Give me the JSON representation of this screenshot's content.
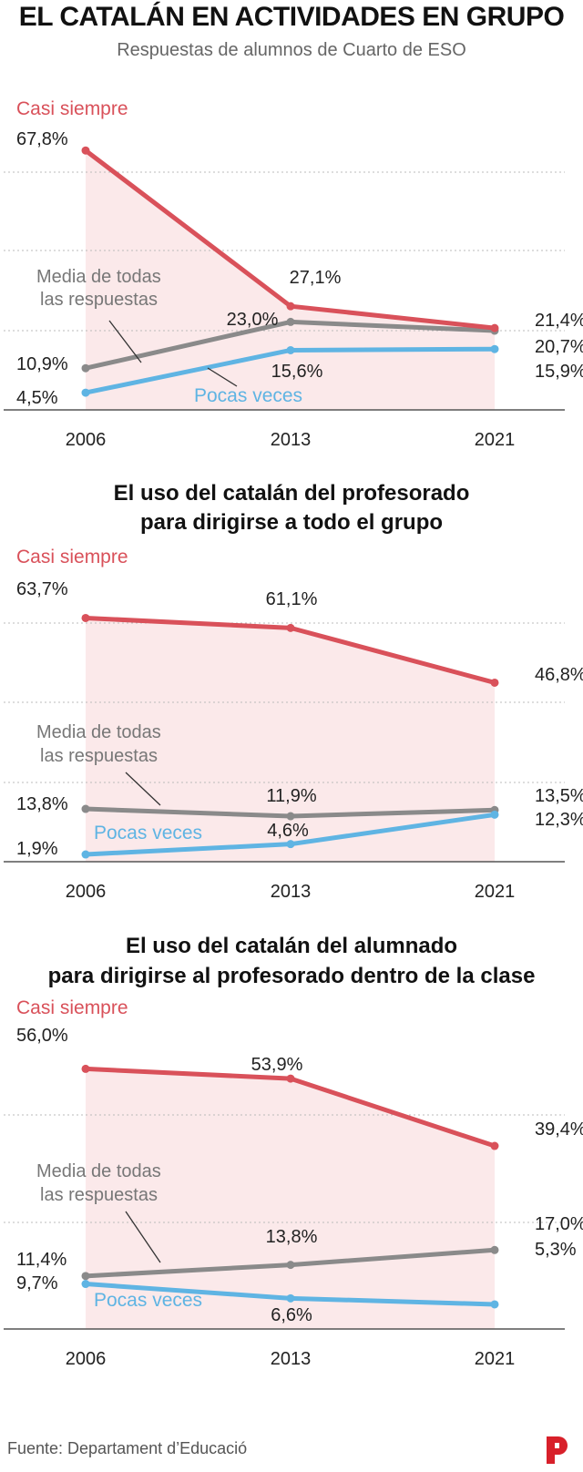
{
  "header": {
    "title": "EL CATALÁN EN ACTIVIDADES EN GRUPO",
    "subtitle": "Respuestas de alumnos de Cuarto de ESO"
  },
  "footer": {
    "source": "Fuente: Departament d’Educació"
  },
  "colors": {
    "casi": "#d9515a",
    "media": "#8a8a8a",
    "pocas": "#5fb4e3",
    "shade": "#fbe9ea"
  },
  "chart_data": [
    {
      "type": "line",
      "title": "",
      "categories": [
        "2006",
        "2013",
        "2021"
      ],
      "series": [
        {
          "name": "Casi siempre",
          "values": [
            67.8,
            27.1,
            21.4
          ],
          "labels": [
            "67,8%",
            "27,1%",
            "21,4%"
          ]
        },
        {
          "name": "Media de todas las respuestas",
          "values": [
            10.9,
            23.0,
            20.7
          ],
          "labels": [
            "10,9%",
            "23,0%",
            "20,7%"
          ]
        },
        {
          "name": "Pocas veces",
          "values": [
            4.5,
            15.6,
            15.9
          ],
          "labels": [
            "4,5%",
            "15,6%",
            "15,9%"
          ]
        }
      ],
      "ylim": [
        0,
        80
      ],
      "grid": true
    },
    {
      "type": "line",
      "title": "El uso del catalán del profesorado para dirigirse a todo el grupo",
      "title_lines": [
        "El uso del catalán del profesorado",
        "para dirigirse a todo el grupo"
      ],
      "categories": [
        "2006",
        "2013",
        "2021"
      ],
      "series": [
        {
          "name": "Casi siempre",
          "values": [
            63.7,
            61.1,
            46.8
          ],
          "labels": [
            "63,7%",
            "61,1%",
            "46,8%"
          ]
        },
        {
          "name": "Media de todas las respuestas",
          "values": [
            13.8,
            11.9,
            13.5
          ],
          "labels": [
            "13,8%",
            "11,9%",
            "13,5%"
          ]
        },
        {
          "name": "Pocas veces",
          "values": [
            1.9,
            4.6,
            12.3
          ],
          "labels": [
            "1,9%",
            "4,6%",
            "12,3%"
          ]
        }
      ],
      "ylim": [
        0,
        80
      ],
      "grid": true
    },
    {
      "type": "line",
      "title": "El uso del catalán del alumnado para dirigirse al profesorado dentro de la clase",
      "title_lines": [
        "El uso del catalán del alumnado",
        "para dirigirse al profesorado dentro de la clase"
      ],
      "categories": [
        "2006",
        "2013",
        "2021"
      ],
      "series": [
        {
          "name": "Casi siempre",
          "values": [
            56.0,
            53.9,
            39.4
          ],
          "labels": [
            "56,0%",
            "53,9%",
            "39,4%"
          ]
        },
        {
          "name": "Media de todas las respuestas",
          "values": [
            11.4,
            13.8,
            17.0
          ],
          "labels": [
            "11,4%",
            "13,8%",
            "17,0%"
          ]
        },
        {
          "name": "Pocas veces",
          "values": [
            9.7,
            6.6,
            5.3
          ],
          "labels": [
            "9,7%",
            "6,6%",
            "5,3%"
          ]
        }
      ],
      "ylim": [
        0,
        70
      ],
      "grid": true
    }
  ]
}
